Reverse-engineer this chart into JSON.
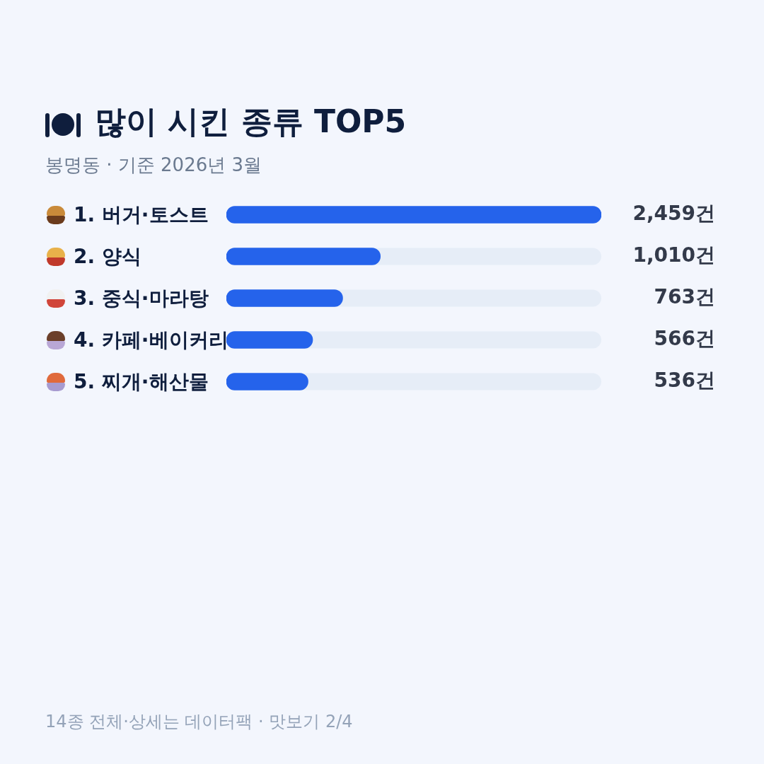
{
  "chart_data": {
    "type": "bar",
    "orientation": "horizontal",
    "title": "많이 시킨 종류 TOP5",
    "subtitle": "봉명동 · 기준 2026년 3월",
    "categories": [
      "1. 버거·토스트",
      "2. 양식",
      "3. 중식·마라탕",
      "4. 카페·베이커리",
      "5. 찌개·해산물"
    ],
    "values": [
      2459,
      1010,
      763,
      566,
      536
    ],
    "value_labels": [
      "2,459건",
      "1,010건",
      "763건",
      "566건",
      "536건"
    ],
    "color": "#2563eb",
    "legend": false,
    "annotations": [
      "14종 전체·상세는 데이터팩 · 맛보기 2/4"
    ]
  }
}
